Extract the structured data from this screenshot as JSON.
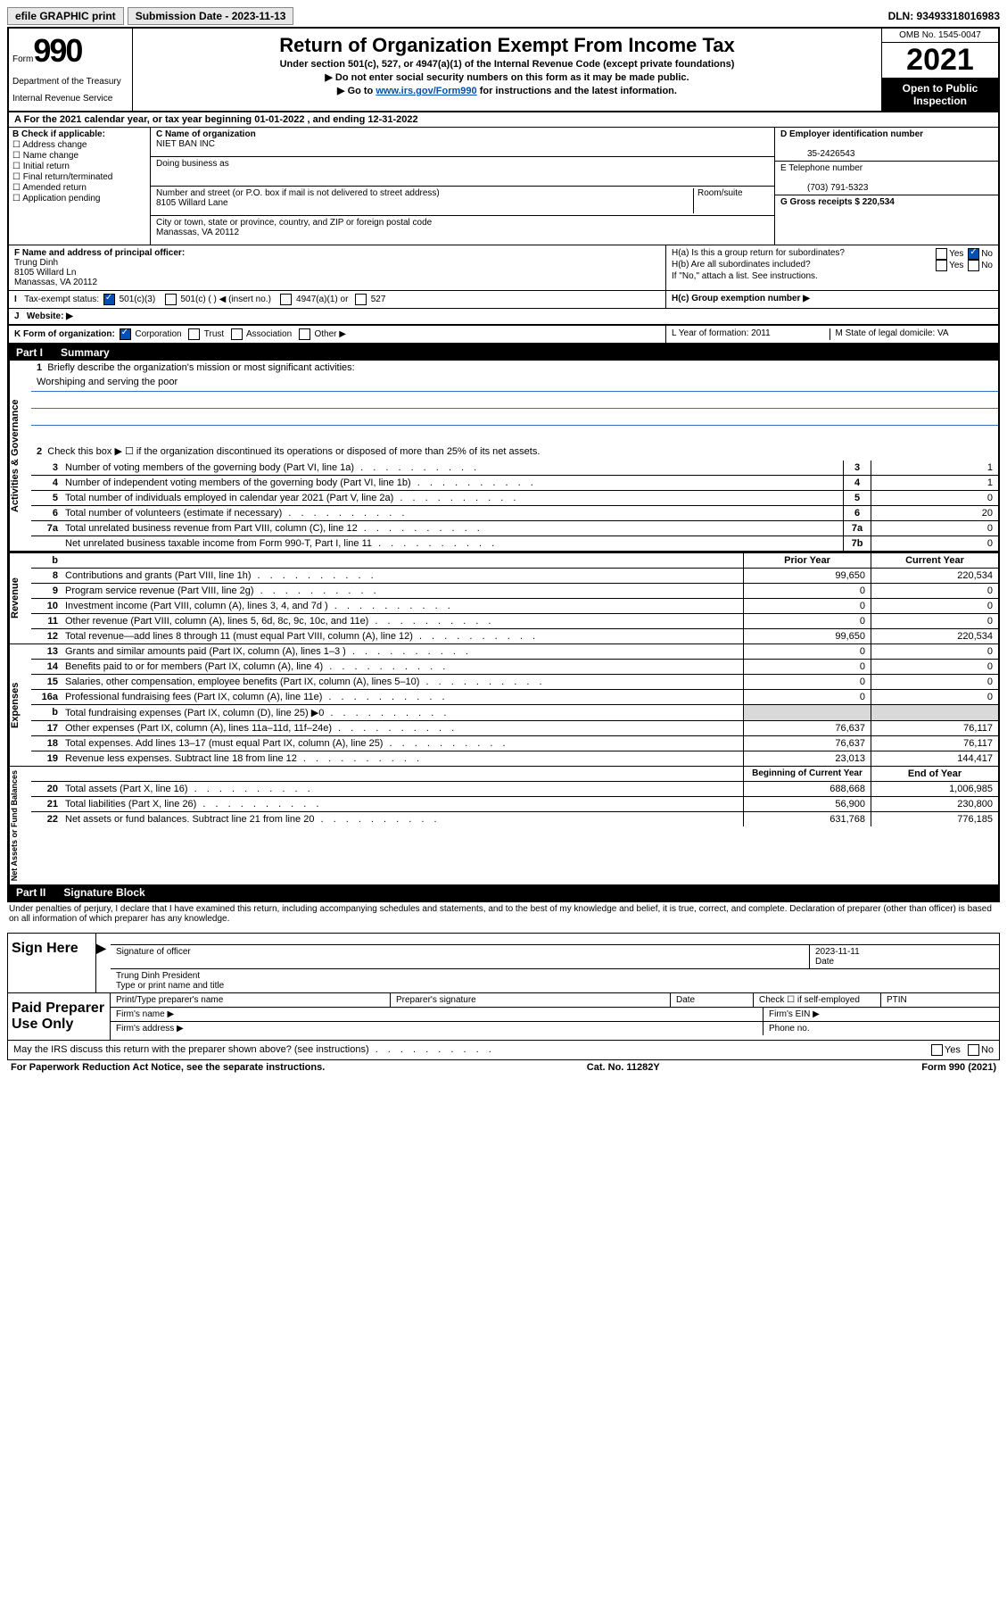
{
  "topbar": {
    "efile": "efile GRAPHIC print",
    "submission_label": "Submission Date - 2023-11-13",
    "dln": "DLN: 93493318016983"
  },
  "header": {
    "form_prefix": "Form",
    "form_number": "990",
    "dept": "Department of the Treasury",
    "irs": "Internal Revenue Service",
    "title": "Return of Organization Exempt From Income Tax",
    "subtitle": "Under section 501(c), 527, or 4947(a)(1) of the Internal Revenue Code (except private foundations)",
    "warn1": "▶ Do not enter social security numbers on this form as it may be made public.",
    "warn2_prefix": "▶ Go to ",
    "warn2_link": "www.irs.gov/Form990",
    "warn2_suffix": " for instructions and the latest information.",
    "omb": "OMB No. 1545-0047",
    "year": "2021",
    "open_public": "Open to Public Inspection"
  },
  "taxyear": "For the 2021 calendar year, or tax year beginning 01-01-2022  , and ending 12-31-2022",
  "sectionB": {
    "label": "B Check if applicable:",
    "opts": [
      "Address change",
      "Name change",
      "Initial return",
      "Final return/terminated",
      "Amended return",
      "Application pending"
    ]
  },
  "sectionC": {
    "name_label": "C Name of organization",
    "name": "NIET BAN INC",
    "dba_label": "Doing business as",
    "street_label": "Number and street (or P.O. box if mail is not delivered to street address)",
    "room_label": "Room/suite",
    "street": "8105 Willard Lane",
    "city_label": "City or town, state or province, country, and ZIP or foreign postal code",
    "city": "Manassas, VA  20112"
  },
  "sectionDEG": {
    "d_label": "D Employer identification number",
    "d_val": "35-2426543",
    "e_label": "E Telephone number",
    "e_val": "(703) 791-5323",
    "g_label": "G Gross receipts $ 220,534"
  },
  "sectionF": {
    "label": "F Name and address of principal officer:",
    "name": "Trung Dinh",
    "addr1": "8105 Willard Ln",
    "addr2": "Manassas, VA  20112"
  },
  "sectionH": {
    "a": "H(a)  Is this a group return for subordinates?",
    "b": "H(b)  Are all subordinates included?",
    "b_note": "If \"No,\" attach a list. See instructions.",
    "c": "H(c)  Group exemption number ▶",
    "yes": "Yes",
    "no": "No"
  },
  "sectionI": {
    "label": "Tax-exempt status:",
    "opts": [
      "501(c)(3)",
      "501(c) (  ) ◀ (insert no.)",
      "4947(a)(1) or",
      "527"
    ]
  },
  "sectionJ": "Website: ▶",
  "sectionK": {
    "label": "K Form of organization:",
    "opts": [
      "Corporation",
      "Trust",
      "Association",
      "Other ▶"
    ]
  },
  "sectionL": "L Year of formation: 2011",
  "sectionM": "M State of legal domicile: VA",
  "partI": {
    "header": "Part I",
    "title": "Summary",
    "line1": "Briefly describe the organization's mission or most significant activities:",
    "mission": "Worshiping and serving the poor",
    "line2": "Check this box ▶ ☐  if the organization discontinued its operations or disposed of more than 25% of its net assets.",
    "vert1": "Activities & Governance",
    "vert2": "Revenue",
    "vert3": "Expenses",
    "vert4": "Net Assets or Fund Balances",
    "lines_gov": [
      {
        "n": "3",
        "t": "Number of voting members of the governing body (Part VI, line 1a)",
        "box": "3",
        "v": "1"
      },
      {
        "n": "4",
        "t": "Number of independent voting members of the governing body (Part VI, line 1b)",
        "box": "4",
        "v": "1"
      },
      {
        "n": "5",
        "t": "Total number of individuals employed in calendar year 2021 (Part V, line 2a)",
        "box": "5",
        "v": "0"
      },
      {
        "n": "6",
        "t": "Total number of volunteers (estimate if necessary)",
        "box": "6",
        "v": "20"
      },
      {
        "n": "7a",
        "t": "Total unrelated business revenue from Part VIII, column (C), line 12",
        "box": "7a",
        "v": "0"
      },
      {
        "n": "",
        "t": "Net unrelated business taxable income from Form 990-T, Part I, line 11",
        "box": "7b",
        "v": "0"
      }
    ],
    "col_prior": "Prior Year",
    "col_current": "Current Year",
    "lines_rev": [
      {
        "n": "8",
        "t": "Contributions and grants (Part VIII, line 1h)",
        "p": "99,650",
        "c": "220,534"
      },
      {
        "n": "9",
        "t": "Program service revenue (Part VIII, line 2g)",
        "p": "0",
        "c": "0"
      },
      {
        "n": "10",
        "t": "Investment income (Part VIII, column (A), lines 3, 4, and 7d )",
        "p": "0",
        "c": "0"
      },
      {
        "n": "11",
        "t": "Other revenue (Part VIII, column (A), lines 5, 6d, 8c, 9c, 10c, and 11e)",
        "p": "0",
        "c": "0"
      },
      {
        "n": "12",
        "t": "Total revenue—add lines 8 through 11 (must equal Part VIII, column (A), line 12)",
        "p": "99,650",
        "c": "220,534"
      }
    ],
    "lines_exp": [
      {
        "n": "13",
        "t": "Grants and similar amounts paid (Part IX, column (A), lines 1–3 )",
        "p": "0",
        "c": "0"
      },
      {
        "n": "14",
        "t": "Benefits paid to or for members (Part IX, column (A), line 4)",
        "p": "0",
        "c": "0"
      },
      {
        "n": "15",
        "t": "Salaries, other compensation, employee benefits (Part IX, column (A), lines 5–10)",
        "p": "0",
        "c": "0"
      },
      {
        "n": "16a",
        "t": "Professional fundraising fees (Part IX, column (A), line 11e)",
        "p": "0",
        "c": "0"
      },
      {
        "n": "b",
        "t": "Total fundraising expenses (Part IX, column (D), line 25) ▶0",
        "p": "",
        "c": "",
        "shaded": true
      },
      {
        "n": "17",
        "t": "Other expenses (Part IX, column (A), lines 11a–11d, 11f–24e)",
        "p": "76,637",
        "c": "76,117"
      },
      {
        "n": "18",
        "t": "Total expenses. Add lines 13–17 (must equal Part IX, column (A), line 25)",
        "p": "76,637",
        "c": "76,117"
      },
      {
        "n": "19",
        "t": "Revenue less expenses. Subtract line 18 from line 12",
        "p": "23,013",
        "c": "144,417"
      }
    ],
    "col_begin": "Beginning of Current Year",
    "col_end": "End of Year",
    "lines_net": [
      {
        "n": "20",
        "t": "Total assets (Part X, line 16)",
        "p": "688,668",
        "c": "1,006,985"
      },
      {
        "n": "21",
        "t": "Total liabilities (Part X, line 26)",
        "p": "56,900",
        "c": "230,800"
      },
      {
        "n": "22",
        "t": "Net assets or fund balances. Subtract line 21 from line 20",
        "p": "631,768",
        "c": "776,185"
      }
    ]
  },
  "partII": {
    "header": "Part II",
    "title": "Signature Block",
    "perjury": "Under penalties of perjury, I declare that I have examined this return, including accompanying schedules and statements, and to the best of my knowledge and belief, it is true, correct, and complete. Declaration of preparer (other than officer) is based on all information of which preparer has any knowledge.",
    "sign_here": "Sign Here",
    "sig_officer": "Signature of officer",
    "date_label": "Date",
    "sig_date": "2023-11-11",
    "name_title": "Trung Dinh  President",
    "name_title_label": "Type or print name and title",
    "paid_prep": "Paid Preparer Use Only",
    "prep_name_label": "Print/Type preparer's name",
    "prep_sig_label": "Preparer's signature",
    "check_self": "Check ☐ if self-employed",
    "ptin": "PTIN",
    "firm_name": "Firm's name  ▶",
    "firm_ein": "Firm's EIN ▶",
    "firm_addr": "Firm's address ▶",
    "phone": "Phone no.",
    "discuss": "May the IRS discuss this return with the preparer shown above? (see instructions)"
  },
  "footer": {
    "left": "For Paperwork Reduction Act Notice, see the separate instructions.",
    "center": "Cat. No. 11282Y",
    "right": "Form 990 (2021)"
  }
}
